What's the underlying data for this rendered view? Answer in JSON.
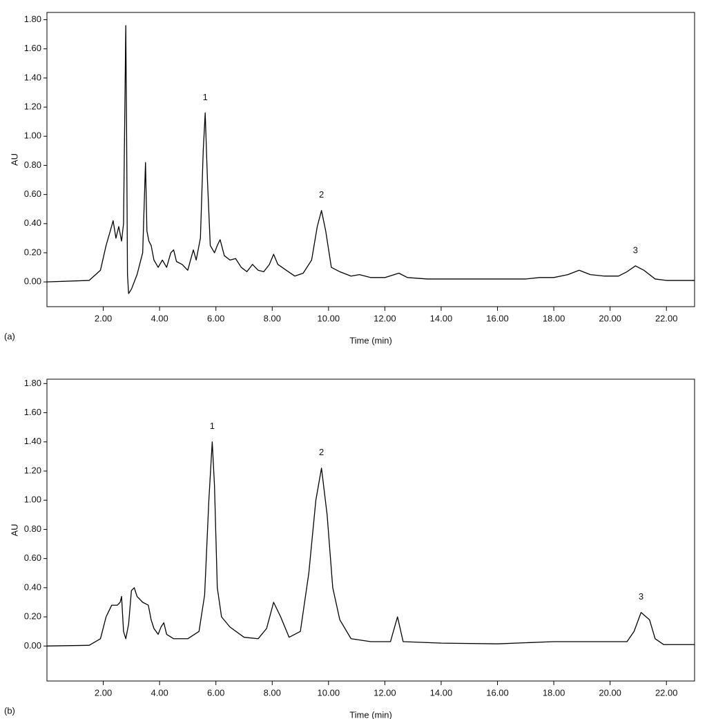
{
  "chart_data": [
    {
      "type": "line",
      "label": "(a)",
      "xlabel": "Time (min)",
      "ylabel": "AU",
      "xlim": [
        0,
        23
      ],
      "ylim": [
        -0.17,
        1.85
      ],
      "xticks": [
        {
          "value": 2,
          "label": "2.00"
        },
        {
          "value": 4,
          "label": "4.00"
        },
        {
          "value": 6,
          "label": "6.00"
        },
        {
          "value": 8,
          "label": "8.00"
        },
        {
          "value": 10,
          "label": "10.00"
        },
        {
          "value": 12,
          "label": "12.00"
        },
        {
          "value": 14,
          "label": "14.00"
        },
        {
          "value": 16,
          "label": "16.00"
        },
        {
          "value": 18,
          "label": "18.00"
        },
        {
          "value": 20,
          "label": "20.00"
        },
        {
          "value": 22,
          "label": "22.00"
        }
      ],
      "yticks": [
        {
          "value": 0,
          "label": "0.00"
        },
        {
          "value": 0.2,
          "label": "0.20"
        },
        {
          "value": 0.4,
          "label": "0.40"
        },
        {
          "value": 0.6,
          "label": "0.60"
        },
        {
          "value": 0.8,
          "label": "0.80"
        },
        {
          "value": 1.0,
          "label": "1.00"
        },
        {
          "value": 1.2,
          "label": "1.20"
        },
        {
          "value": 1.4,
          "label": "1.40"
        },
        {
          "value": 1.6,
          "label": "1.60"
        },
        {
          "value": 1.8,
          "label": "1.80"
        }
      ],
      "color": "#000000",
      "x": [
        0,
        1.5,
        1.9,
        2.1,
        2.25,
        2.35,
        2.45,
        2.55,
        2.65,
        2.72,
        2.8,
        2.83,
        2.86,
        2.9,
        3.0,
        3.2,
        3.4,
        3.5,
        3.55,
        3.62,
        3.7,
        3.8,
        3.95,
        4.1,
        4.25,
        4.4,
        4.5,
        4.6,
        4.8,
        5.0,
        5.2,
        5.3,
        5.45,
        5.55,
        5.62,
        5.7,
        5.8,
        5.95,
        6.05,
        6.15,
        6.3,
        6.5,
        6.7,
        6.9,
        7.1,
        7.3,
        7.5,
        7.7,
        7.9,
        8.05,
        8.2,
        8.5,
        8.8,
        9.1,
        9.4,
        9.6,
        9.75,
        9.9,
        10.1,
        10.4,
        10.8,
        11.1,
        11.5,
        12.0,
        12.5,
        12.8,
        13.5,
        15,
        17,
        17.5,
        18,
        18.5,
        18.9,
        19.3,
        19.8,
        20.3,
        20.6,
        20.9,
        21.2,
        21.6,
        22,
        23
      ],
      "values": [
        0,
        0.01,
        0.08,
        0.25,
        0.35,
        0.42,
        0.3,
        0.38,
        0.28,
        0.4,
        1.76,
        1.0,
        0.05,
        -0.08,
        -0.05,
        0.05,
        0.2,
        0.82,
        0.35,
        0.28,
        0.25,
        0.15,
        0.1,
        0.15,
        0.1,
        0.2,
        0.22,
        0.14,
        0.12,
        0.08,
        0.22,
        0.15,
        0.3,
        0.9,
        1.16,
        0.7,
        0.25,
        0.2,
        0.25,
        0.29,
        0.18,
        0.15,
        0.16,
        0.1,
        0.07,
        0.12,
        0.08,
        0.07,
        0.12,
        0.19,
        0.12,
        0.08,
        0.04,
        0.06,
        0.15,
        0.38,
        0.49,
        0.35,
        0.1,
        0.07,
        0.04,
        0.05,
        0.03,
        0.03,
        0.06,
        0.03,
        0.02,
        0.02,
        0.02,
        0.03,
        0.03,
        0.05,
        0.08,
        0.05,
        0.04,
        0.04,
        0.07,
        0.11,
        0.08,
        0.02,
        0.01,
        0.01
      ],
      "annotations": [
        {
          "text": "1",
          "x": 5.62,
          "y": 1.16
        },
        {
          "text": "2",
          "x": 9.75,
          "y": 0.49
        },
        {
          "text": "3",
          "x": 20.9,
          "y": 0.11
        }
      ]
    },
    {
      "type": "line",
      "label": "(b)",
      "xlabel": "Time (min)",
      "ylabel": "AU",
      "xlim": [
        0,
        23
      ],
      "ylim": [
        -0.24,
        1.83
      ],
      "xticks": [
        {
          "value": 2,
          "label": "2.00"
        },
        {
          "value": 4,
          "label": "4.00"
        },
        {
          "value": 6,
          "label": "6.00"
        },
        {
          "value": 8,
          "label": "8.00"
        },
        {
          "value": 10,
          "label": "10.00"
        },
        {
          "value": 12,
          "label": "12.00"
        },
        {
          "value": 14,
          "label": "14.00"
        },
        {
          "value": 16,
          "label": "16.00"
        },
        {
          "value": 18,
          "label": "18.00"
        },
        {
          "value": 20,
          "label": "20.00"
        },
        {
          "value": 22,
          "label": "22.00"
        }
      ],
      "yticks": [
        {
          "value": 0,
          "label": "0.00"
        },
        {
          "value": 0.2,
          "label": "0.20"
        },
        {
          "value": 0.4,
          "label": "0.40"
        },
        {
          "value": 0.6,
          "label": "0.60"
        },
        {
          "value": 0.8,
          "label": "0.80"
        },
        {
          "value": 1.0,
          "label": "1.00"
        },
        {
          "value": 1.2,
          "label": "1.20"
        },
        {
          "value": 1.4,
          "label": "1.40"
        },
        {
          "value": 1.6,
          "label": "1.60"
        },
        {
          "value": 1.8,
          "label": "1.80"
        }
      ],
      "color": "#000000",
      "x": [
        0,
        1.5,
        1.9,
        2.1,
        2.3,
        2.5,
        2.6,
        2.65,
        2.72,
        2.8,
        2.9,
        3.0,
        3.1,
        3.2,
        3.4,
        3.6,
        3.7,
        3.8,
        3.95,
        4.05,
        4.15,
        4.25,
        4.5,
        5.0,
        5.4,
        5.6,
        5.75,
        5.87,
        5.95,
        6.05,
        6.2,
        6.5,
        7.0,
        7.5,
        7.8,
        8.05,
        8.3,
        8.6,
        9.0,
        9.3,
        9.55,
        9.75,
        9.95,
        10.15,
        10.4,
        10.8,
        11.5,
        12.2,
        12.45,
        12.65,
        14,
        16,
        18,
        20,
        20.6,
        20.85,
        21.1,
        21.4,
        21.6,
        21.9,
        23
      ],
      "values": [
        0,
        0.005,
        0.05,
        0.2,
        0.28,
        0.28,
        0.3,
        0.34,
        0.1,
        0.05,
        0.15,
        0.38,
        0.4,
        0.34,
        0.3,
        0.28,
        0.18,
        0.12,
        0.08,
        0.13,
        0.16,
        0.08,
        0.05,
        0.05,
        0.1,
        0.35,
        1.0,
        1.4,
        1.1,
        0.4,
        0.2,
        0.13,
        0.06,
        0.05,
        0.12,
        0.3,
        0.2,
        0.06,
        0.1,
        0.5,
        1.0,
        1.22,
        0.9,
        0.4,
        0.18,
        0.05,
        0.03,
        0.03,
        0.2,
        0.03,
        0.02,
        0.015,
        0.03,
        0.03,
        0.03,
        0.1,
        0.23,
        0.18,
        0.05,
        0.01,
        0.01
      ],
      "annotations": [
        {
          "text": "1",
          "x": 5.87,
          "y": 1.4
        },
        {
          "text": "2",
          "x": 9.75,
          "y": 1.22
        },
        {
          "text": "3",
          "x": 21.1,
          "y": 0.23
        }
      ]
    }
  ]
}
